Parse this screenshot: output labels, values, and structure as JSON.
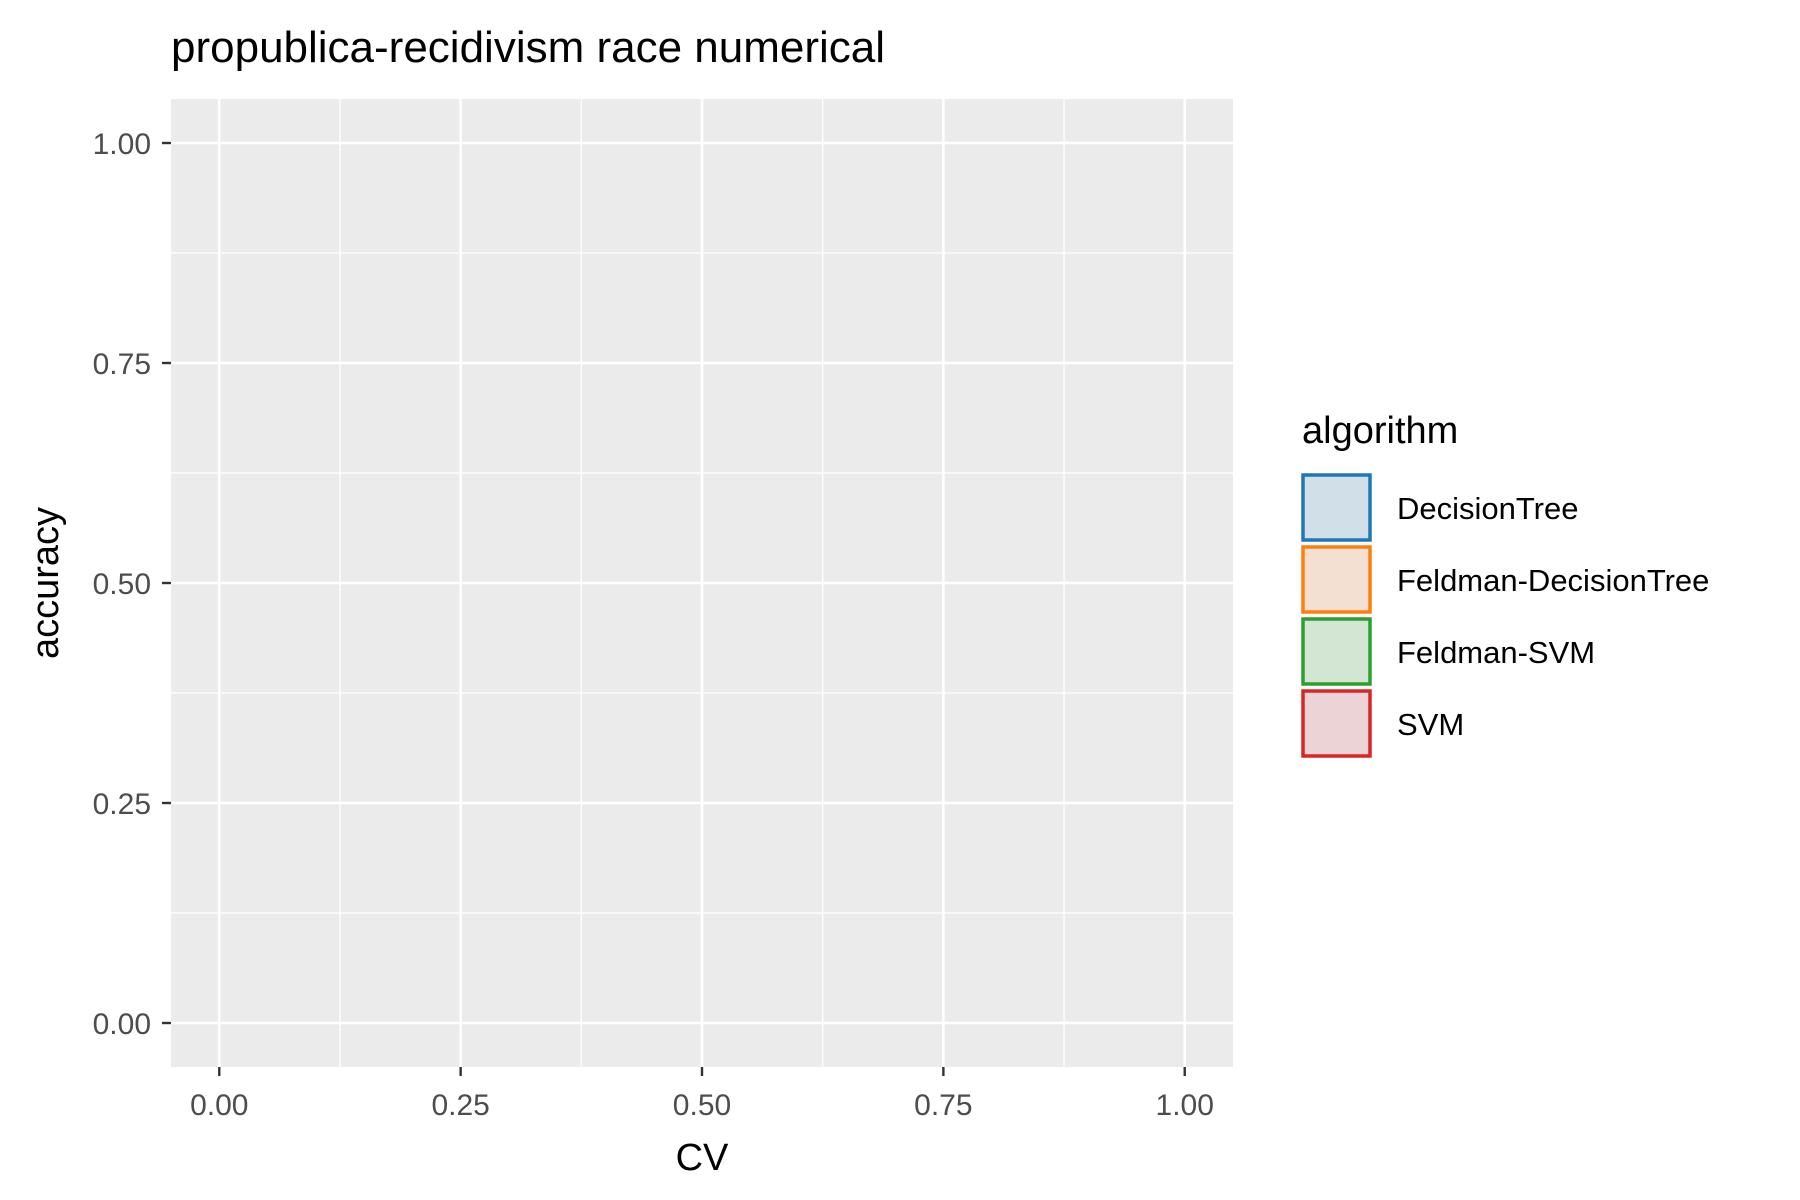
{
  "chart_data": {
    "type": "scatter",
    "title": "propublica-recidivism race numerical",
    "xlabel": "CV",
    "ylabel": "accuracy",
    "xlim": [
      -0.05,
      1.05
    ],
    "ylim": [
      -0.05,
      1.05
    ],
    "x_ticks": [
      0.0,
      0.25,
      0.5,
      0.75,
      1.0
    ],
    "x_tick_labels": [
      "0.00",
      "0.25",
      "0.50",
      "0.75",
      "1.00"
    ],
    "y_ticks": [
      0.0,
      0.25,
      0.5,
      0.75,
      1.0
    ],
    "y_tick_labels": [
      "0.00",
      "0.25",
      "0.50",
      "0.75",
      "1.00"
    ],
    "grid": true,
    "legend": {
      "title": "algorithm",
      "placement": "right",
      "entries": [
        {
          "label": "DecisionTree",
          "color": "#1f77b4",
          "fill": "#d0dfe8"
        },
        {
          "label": "Feldman-DecisionTree",
          "color": "#ff7f0e",
          "fill": "#f3e0d2"
        },
        {
          "label": "Feldman-SVM",
          "color": "#2ca02c",
          "fill": "#d3e5d3"
        },
        {
          "label": "SVM",
          "color": "#d62728",
          "fill": "#ecd3d5"
        }
      ]
    },
    "series": [
      {
        "name": "DecisionTree",
        "points": []
      },
      {
        "name": "Feldman-DecisionTree",
        "points": []
      },
      {
        "name": "Feldman-SVM",
        "points": []
      },
      {
        "name": "SVM",
        "points": []
      }
    ],
    "panel_background": "#ebebeb",
    "grid_color": "#ffffff",
    "tick_color": "#333333"
  }
}
